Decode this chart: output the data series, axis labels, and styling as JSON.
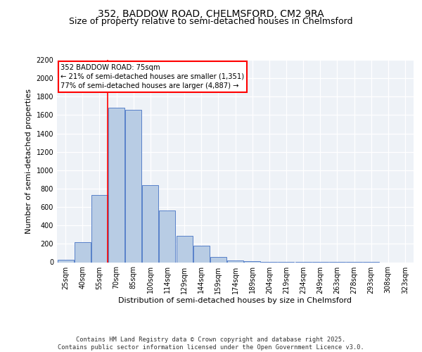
{
  "title": "352, BADDOW ROAD, CHELMSFORD, CM2 9RA",
  "subtitle": "Size of property relative to semi-detached houses in Chelmsford",
  "xlabel": "Distribution of semi-detached houses by size in Chelmsford",
  "ylabel": "Number of semi-detached properties",
  "categories": [
    "25sqm",
    "40sqm",
    "55sqm",
    "70sqm",
    "85sqm",
    "100sqm",
    "114sqm",
    "129sqm",
    "144sqm",
    "159sqm",
    "174sqm",
    "189sqm",
    "204sqm",
    "219sqm",
    "234sqm",
    "249sqm",
    "263sqm",
    "278sqm",
    "293sqm",
    "308sqm",
    "323sqm"
  ],
  "values": [
    30,
    220,
    730,
    1680,
    1660,
    840,
    560,
    290,
    180,
    60,
    20,
    10,
    5,
    3,
    2,
    2,
    2,
    1,
    1,
    0,
    0
  ],
  "bar_color": "#b8cce4",
  "bar_edge_color": "#4472c4",
  "property_label": "352 BADDOW ROAD: 75sqm",
  "pct_smaller": 21,
  "count_smaller": 1351,
  "pct_larger": 77,
  "count_larger": 4887,
  "vline_color": "#ff0000",
  "vline_x": 2.5,
  "ylim": [
    0,
    2200
  ],
  "yticks": [
    0,
    200,
    400,
    600,
    800,
    1000,
    1200,
    1400,
    1600,
    1800,
    2000,
    2200
  ],
  "background_color": "#eef2f7",
  "footer": "Contains HM Land Registry data © Crown copyright and database right 2025.\nContains public sector information licensed under the Open Government Licence v3.0.",
  "title_fontsize": 10,
  "subtitle_fontsize": 9,
  "axis_fontsize": 8,
  "tick_fontsize": 7
}
